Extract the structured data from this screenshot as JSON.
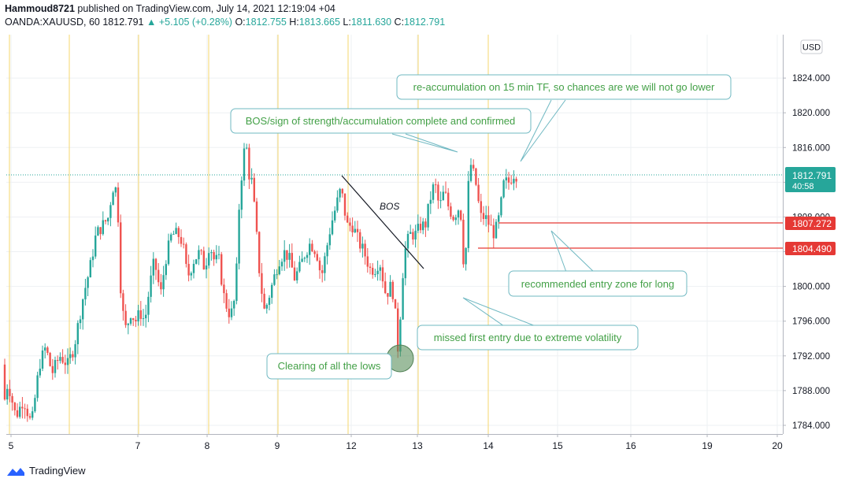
{
  "header": {
    "author": "Hammoud8721",
    "published": "published on TradingView.com, July 14, 2021 12:19:04 +04",
    "symbol": "OANDA:XAUUSD, 60",
    "last": "1812.791",
    "change": "+5.105 (+0.28%)",
    "o_label": "O:",
    "o": "1812.755",
    "h_label": "H:",
    "h": "1813.665",
    "l_label": "L:",
    "l": "1811.630",
    "c_label": "C:",
    "c": "1812.791"
  },
  "currency": "USD",
  "price_labels": {
    "current": "1812.791",
    "countdown": "40:58",
    "line1": "1807.272",
    "line2": "1804.490"
  },
  "annotations": {
    "reacc": "re-accumulation on 15 min TF, so chances are we will not go lower",
    "bos_text": "BOS/sign of strength/accumulation complete and confirmed",
    "bos_label": "BOS",
    "entry": "recommended entry zone for long",
    "missed": "missed first entry due to extreme volatility",
    "clearing": "Clearing of all the lows"
  },
  "footer": {
    "brand": "TradingView"
  },
  "colors": {
    "up": "#26a69a",
    "down": "#ef5350",
    "session": "#f5d76e",
    "level": "#e53935",
    "note": "#4caf50",
    "note_border": "#6fb8c2"
  },
  "chart_data": {
    "type": "candlestick",
    "x_ticks": [
      "5",
      "7",
      "8",
      "9",
      "12",
      "13",
      "14",
      "15",
      "16",
      "19",
      "20"
    ],
    "y_ticks": [
      1784,
      1788,
      1792,
      1796,
      1800,
      1804,
      1808,
      1812,
      1816,
      1820,
      1824
    ],
    "y_tick_labels": [
      "1784.000",
      "1788.000",
      "1792.000",
      "1796.000",
      "1800.000",
      "1804.000",
      "1808.000",
      "1812.000",
      "1816.000",
      "1820.000",
      "1824.000"
    ],
    "ylim": [
      1783,
      1829
    ],
    "levels": [
      1807.272,
      1804.49
    ],
    "current_price": 1812.791,
    "path": [
      [
        0,
        1791
      ],
      [
        4,
        1786
      ],
      [
        10,
        1789
      ],
      [
        20,
        1785
      ],
      [
        30,
        1787
      ],
      [
        40,
        1784
      ],
      [
        50,
        1791
      ],
      [
        58,
        1793
      ],
      [
        66,
        1790
      ],
      [
        76,
        1792
      ],
      [
        86,
        1791
      ],
      [
        94,
        1793
      ],
      [
        100,
        1796
      ],
      [
        106,
        1799
      ],
      [
        114,
        1802
      ],
      [
        122,
        1806
      ],
      [
        130,
        1807
      ],
      [
        138,
        1808
      ],
      [
        142,
        1811
      ],
      [
        146,
        1812
      ],
      [
        150,
        1808
      ],
      [
        154,
        1798
      ],
      [
        160,
        1795
      ],
      [
        166,
        1797
      ],
      [
        172,
        1796
      ],
      [
        178,
        1797
      ],
      [
        184,
        1796
      ],
      [
        190,
        1800
      ],
      [
        196,
        1803
      ],
      [
        204,
        1799
      ],
      [
        210,
        1803
      ],
      [
        218,
        1806
      ],
      [
        226,
        1806
      ],
      [
        232,
        1805
      ],
      [
        238,
        1801
      ],
      [
        246,
        1803
      ],
      [
        254,
        1804
      ],
      [
        260,
        1802
      ],
      [
        266,
        1805
      ],
      [
        272,
        1803
      ],
      [
        278,
        1803
      ],
      [
        284,
        1799
      ],
      [
        290,
        1797
      ],
      [
        296,
        1797
      ],
      [
        300,
        1801
      ],
      [
        304,
        1810
      ],
      [
        308,
        1814
      ],
      [
        312,
        1817
      ],
      [
        316,
        1813
      ],
      [
        320,
        1812
      ],
      [
        324,
        1808
      ],
      [
        330,
        1801
      ],
      [
        336,
        1797
      ],
      [
        342,
        1799
      ],
      [
        348,
        1801
      ],
      [
        354,
        1803
      ],
      [
        362,
        1804
      ],
      [
        368,
        1803
      ],
      [
        374,
        1801
      ],
      [
        380,
        1802
      ],
      [
        388,
        1804
      ],
      [
        394,
        1805
      ],
      [
        402,
        1804
      ],
      [
        408,
        1801
      ],
      [
        414,
        1804
      ],
      [
        420,
        1807
      ],
      [
        426,
        1809
      ],
      [
        432,
        1811
      ],
      [
        436,
        1810
      ],
      [
        440,
        1807
      ],
      [
        448,
        1807
      ],
      [
        456,
        1805
      ],
      [
        462,
        1804
      ],
      [
        470,
        1802
      ],
      [
        476,
        1802
      ],
      [
        482,
        1803
      ],
      [
        490,
        1799
      ],
      [
        496,
        1800
      ],
      [
        500,
        1799
      ],
      [
        506,
        1792
      ],
      [
        510,
        1800
      ],
      [
        514,
        1804
      ],
      [
        520,
        1806
      ],
      [
        528,
        1806
      ],
      [
        534,
        1807
      ],
      [
        540,
        1807
      ],
      [
        546,
        1810
      ],
      [
        552,
        1812
      ],
      [
        558,
        1809
      ],
      [
        564,
        1811
      ],
      [
        570,
        1809
      ],
      [
        576,
        1808
      ],
      [
        582,
        1809
      ],
      [
        586,
        1808
      ],
      [
        590,
        1800
      ],
      [
        594,
        1811
      ],
      [
        598,
        1814
      ],
      [
        604,
        1812
      ],
      [
        610,
        1808
      ],
      [
        616,
        1808
      ],
      [
        622,
        1807
      ],
      [
        628,
        1806
      ],
      [
        634,
        1808
      ],
      [
        640,
        1812
      ],
      [
        646,
        1812
      ],
      [
        652,
        1813
      ],
      [
        658,
        1812.8
      ]
    ]
  }
}
